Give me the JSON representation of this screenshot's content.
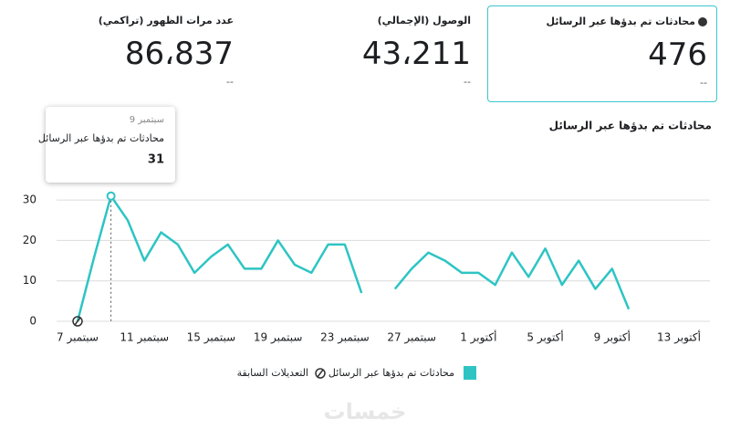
{
  "cards": [
    {
      "label": "محادثات تم بدؤها عبر الرسائل",
      "value": "476",
      "change": "--"
    },
    {
      "label": "الوصول (الإجمالي)",
      "value": "43،211",
      "change": "--"
    },
    {
      "label": "عدد مرات الظهور (تراكمي)",
      "value": "86،837",
      "change": "--"
    }
  ],
  "tooltip": {
    "date": "9 سبتمبر"
  },
  "legend_extra": "التعديلات السابقة",
  "watermark": "خمسات",
  "chart_data": {
    "type": "line",
    "title": "محادثات تم بدؤها عبر الرسائل",
    "categories": [
      "7 سبتمبر",
      null,
      null,
      null,
      "11 سبتمبر",
      null,
      null,
      null,
      "15 سبتمبر",
      null,
      null,
      null,
      "19 سبتمبر",
      null,
      null,
      null,
      "23 سبتمبر",
      null,
      null,
      null,
      "27 سبتمبر",
      null,
      null,
      null,
      "1 أكتوبر",
      null,
      null,
      null,
      "5 أكتوبر",
      null,
      null,
      null,
      "9 أكتوبر",
      null,
      null,
      null,
      "13 أكتوبر"
    ],
    "series": [
      {
        "name": "محادثات تم بدؤها عبر الرسائل",
        "color": "#2ec4c4",
        "values": [
          0,
          16,
          31,
          25,
          15,
          22,
          19,
          12,
          16,
          19,
          13,
          13,
          20,
          14,
          12,
          19,
          19,
          7,
          null,
          8,
          13,
          17,
          15,
          12,
          12,
          9,
          17,
          11,
          18,
          9,
          15,
          8,
          13,
          3,
          null,
          null,
          null
        ]
      }
    ],
    "ylim": [
      0,
      35
    ],
    "yticks": [
      0,
      10,
      20,
      30
    ],
    "grid": true
  }
}
